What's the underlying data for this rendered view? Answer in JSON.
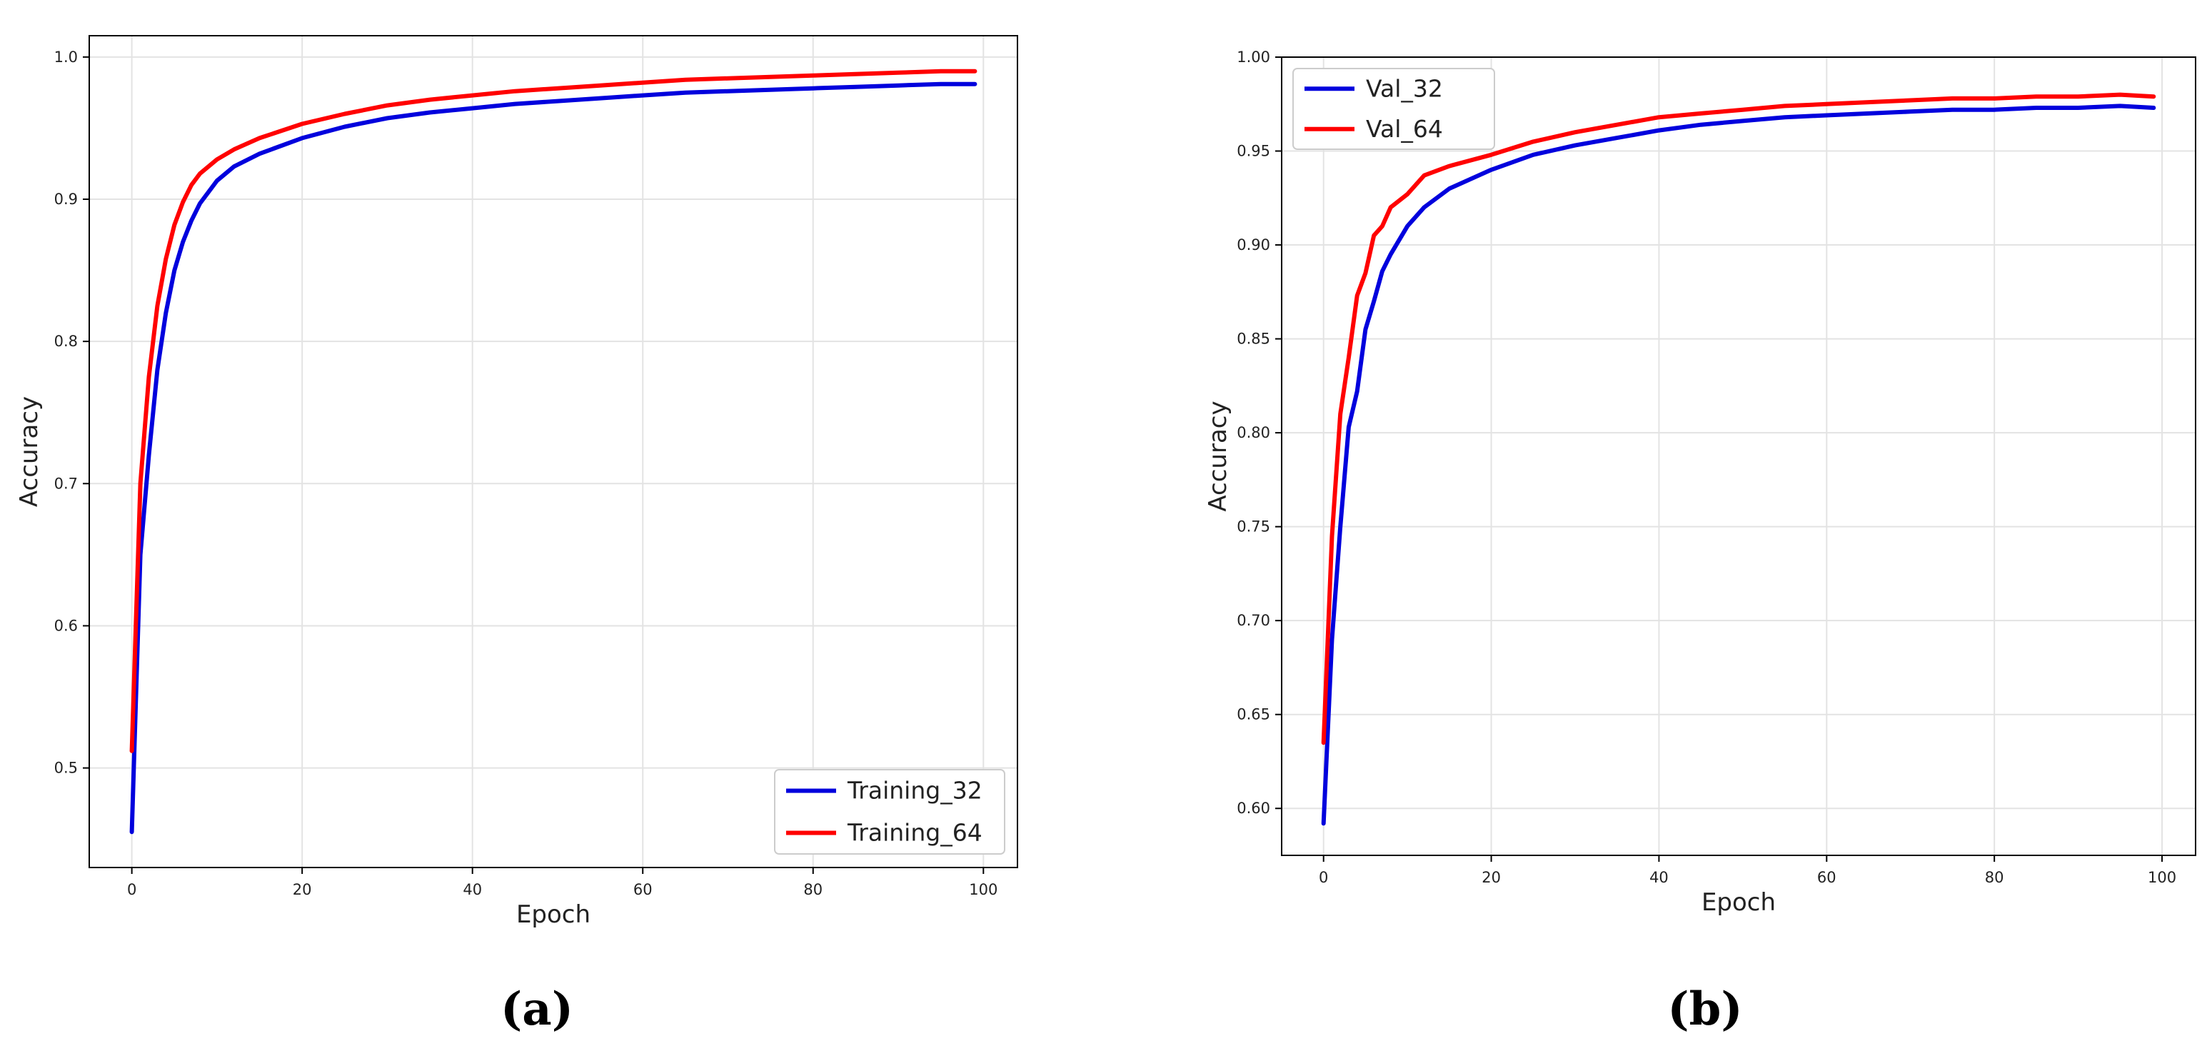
{
  "captions": [
    "(a)",
    "(b)"
  ],
  "colors": {
    "blue": "#0000dd",
    "red": "#ff0000"
  },
  "chart_data": [
    {
      "type": "line",
      "title": "",
      "xlabel": "Epoch",
      "ylabel": "Accuracy",
      "xlim": [
        -5,
        104
      ],
      "ylim": [
        0.43,
        1.015
      ],
      "xticks": [
        0,
        20,
        40,
        60,
        80,
        100
      ],
      "yticks": [
        0.5,
        0.6,
        0.7,
        0.8,
        0.9,
        1.0
      ],
      "ytick_labels": [
        "0.5",
        "0.6",
        "0.7",
        "0.8",
        "0.9",
        "1.0"
      ],
      "grid": true,
      "legend_position": "bottom-right",
      "x": [
        0,
        1,
        2,
        3,
        4,
        5,
        6,
        7,
        8,
        10,
        12,
        15,
        20,
        25,
        30,
        35,
        40,
        45,
        50,
        55,
        60,
        65,
        70,
        75,
        80,
        85,
        90,
        95,
        99
      ],
      "series": [
        {
          "name": "Training_32",
          "color": "#0000dd",
          "values": [
            0.455,
            0.65,
            0.72,
            0.78,
            0.82,
            0.85,
            0.87,
            0.885,
            0.897,
            0.913,
            0.923,
            0.932,
            0.943,
            0.951,
            0.957,
            0.961,
            0.964,
            0.967,
            0.969,
            0.971,
            0.973,
            0.975,
            0.976,
            0.977,
            0.978,
            0.979,
            0.98,
            0.981,
            0.981
          ]
        },
        {
          "name": "Training_64",
          "color": "#ff0000",
          "values": [
            0.512,
            0.7,
            0.775,
            0.825,
            0.858,
            0.882,
            0.898,
            0.91,
            0.918,
            0.928,
            0.935,
            0.943,
            0.953,
            0.96,
            0.966,
            0.97,
            0.973,
            0.976,
            0.978,
            0.98,
            0.982,
            0.984,
            0.985,
            0.986,
            0.987,
            0.988,
            0.989,
            0.99,
            0.99
          ]
        }
      ]
    },
    {
      "type": "line",
      "title": "",
      "xlabel": "Epoch",
      "ylabel": "Accuracy",
      "xlim": [
        -5,
        104
      ],
      "ylim": [
        0.575,
        1.0
      ],
      "xticks": [
        0,
        20,
        40,
        60,
        80,
        100
      ],
      "yticks": [
        0.6,
        0.65,
        0.7,
        0.75,
        0.8,
        0.85,
        0.9,
        0.95,
        1.0
      ],
      "ytick_labels": [
        "0.60",
        "0.65",
        "0.70",
        "0.75",
        "0.80",
        "0.85",
        "0.90",
        "0.95",
        "1.00"
      ],
      "grid": true,
      "legend_position": "top-left",
      "x": [
        0,
        1,
        2,
        3,
        4,
        5,
        6,
        7,
        8,
        10,
        12,
        15,
        20,
        25,
        30,
        35,
        40,
        45,
        50,
        55,
        60,
        65,
        70,
        75,
        80,
        85,
        90,
        95,
        99
      ],
      "series": [
        {
          "name": "Val_32",
          "color": "#0000dd",
          "values": [
            0.592,
            0.69,
            0.75,
            0.803,
            0.822,
            0.855,
            0.87,
            0.886,
            0.895,
            0.91,
            0.92,
            0.93,
            0.94,
            0.948,
            0.953,
            0.957,
            0.961,
            0.964,
            0.966,
            0.968,
            0.969,
            0.97,
            0.971,
            0.972,
            0.972,
            0.973,
            0.973,
            0.974,
            0.973
          ]
        },
        {
          "name": "Val_64",
          "color": "#ff0000",
          "values": [
            0.635,
            0.745,
            0.81,
            0.84,
            0.873,
            0.885,
            0.905,
            0.91,
            0.92,
            0.927,
            0.937,
            0.942,
            0.948,
            0.955,
            0.96,
            0.964,
            0.968,
            0.97,
            0.972,
            0.974,
            0.975,
            0.976,
            0.977,
            0.978,
            0.978,
            0.979,
            0.979,
            0.98,
            0.979
          ]
        }
      ]
    }
  ]
}
